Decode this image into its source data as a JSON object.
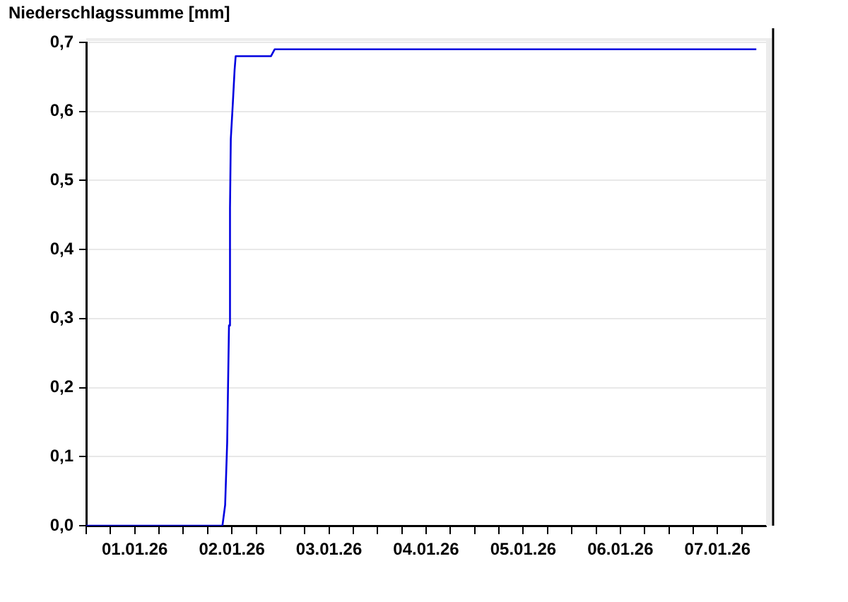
{
  "chart_data": {
    "type": "line",
    "ylabel": "Niederschlagssumme [mm]",
    "x": [
      "--01-01T00:00",
      "--01-02T09:40",
      "--01-02T10:20",
      "--01-02T10:50",
      "--01-02T11:17",
      "--01-02T11:32",
      "--01-02T11:44",
      "--01-02T12:13",
      "--01-02T12:40",
      "--01-02T12:56",
      "--01-02T21:39",
      "--01-02T22:34",
      "--01-07T21:36"
    ],
    "series": [
      {
        "color": "#0000e0",
        "values": [
          0,
          0,
          0.03,
          0.12,
          0.29,
          0.46,
          0.56,
          0.61,
          0.66,
          0.68,
          0.68,
          0.69,
          0.69
        ]
      }
    ],
    "xlim": [
      "--01-01T00:00",
      "--01-08T00:00"
    ],
    "xticks": [
      {
        "value": "--01-01T00:00",
        "label": null
      },
      {
        "value": "--01-01T06:00",
        "label": null
      },
      {
        "value": "--01-01T12:00",
        "label": "01.01.26"
      },
      {
        "value": "--01-01T18:00",
        "label": null
      },
      {
        "value": "--01-02T00:00",
        "label": null
      },
      {
        "value": "--01-02T06:00",
        "label": null
      },
      {
        "value": "--01-02T12:00",
        "label": "02.01.26"
      },
      {
        "value": "--01-02T18:00",
        "label": null
      },
      {
        "value": "--01-03T00:00",
        "label": null
      },
      {
        "value": "--01-03T06:00",
        "label": null
      },
      {
        "value": "--01-03T12:00",
        "label": "03.01.26"
      },
      {
        "value": "--01-03T18:00",
        "label": null
      },
      {
        "value": "--01-04T00:00",
        "label": null
      },
      {
        "value": "--01-04T06:00",
        "label": null
      },
      {
        "value": "--01-04T12:00",
        "label": "04.01.26"
      },
      {
        "value": "--01-04T18:00",
        "label": null
      },
      {
        "value": "--01-05T00:00",
        "label": null
      },
      {
        "value": "--01-05T06:00",
        "label": null
      },
      {
        "value": "--01-05T12:00",
        "label": "05.01.26"
      },
      {
        "value": "--01-05T18:00",
        "label": null
      },
      {
        "value": "--01-06T00:00",
        "label": null
      },
      {
        "value": "--01-06T06:00",
        "label": null
      },
      {
        "value": "--01-06T12:00",
        "label": "06.01.26"
      },
      {
        "value": "--01-06T18:00",
        "label": null
      },
      {
        "value": "--01-07T00:00",
        "label": null
      },
      {
        "value": "--01-07T06:00",
        "label": null
      },
      {
        "value": "--01-07T12:00",
        "label": "07.01.26"
      },
      {
        "value": "--01-07T18:00",
        "label": null
      }
    ],
    "ylim": [
      0,
      0.7
    ],
    "yticks": [
      {
        "value": 0,
        "label": "0,0"
      },
      {
        "value": 0.1,
        "label": "0,1"
      },
      {
        "value": 0.2,
        "label": "0,2"
      },
      {
        "value": 0.3,
        "label": "0,3"
      },
      {
        "value": 0.4,
        "label": "0,4"
      },
      {
        "value": 0.5,
        "label": "0,5"
      },
      {
        "value": 0.6,
        "label": "0,6"
      },
      {
        "value": 0.7,
        "label": "0,7"
      }
    ],
    "grid": "y",
    "marker": "none"
  }
}
